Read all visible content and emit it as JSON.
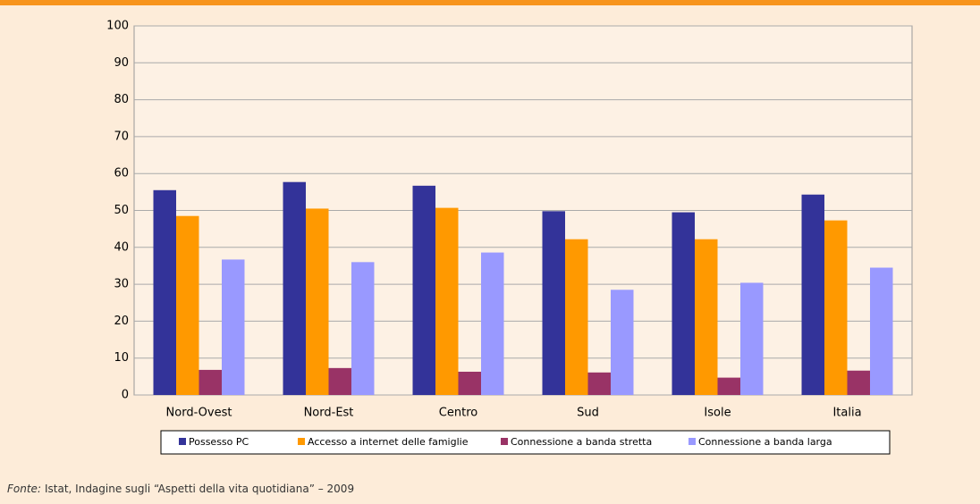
{
  "chart_data": {
    "type": "bar",
    "categories": [
      "Nord-Ovest",
      "Nord-Est",
      "Centro",
      "Sud",
      "Isole",
      "Italia"
    ],
    "series": [
      {
        "name": "Possesso PC",
        "color": "#333399",
        "values": [
          55.5,
          57.7,
          56.7,
          49.8,
          49.5,
          54.3
        ]
      },
      {
        "name": "Accesso a internet delle famiglie",
        "color": "#ff9900",
        "values": [
          48.5,
          50.5,
          50.7,
          42.2,
          42.2,
          47.3
        ]
      },
      {
        "name": "Connessione a banda stretta",
        "color": "#993366",
        "values": [
          6.8,
          7.3,
          6.3,
          6.1,
          4.7,
          6.6
        ]
      },
      {
        "name": "Connessione a banda larga",
        "color": "#9999ff",
        "values": [
          36.7,
          36.0,
          38.6,
          28.5,
          30.4,
          34.5
        ]
      }
    ],
    "ylim": [
      0,
      100
    ],
    "yticks": [
      0,
      10,
      20,
      30,
      40,
      50,
      60,
      70,
      80,
      90,
      100
    ],
    "grid": true,
    "legend": "bottom"
  },
  "footer": {
    "source_label": "Fonte:",
    "source": "Istat, Indagine sugli “Aspetti della vita quotidiana” – 2009"
  }
}
